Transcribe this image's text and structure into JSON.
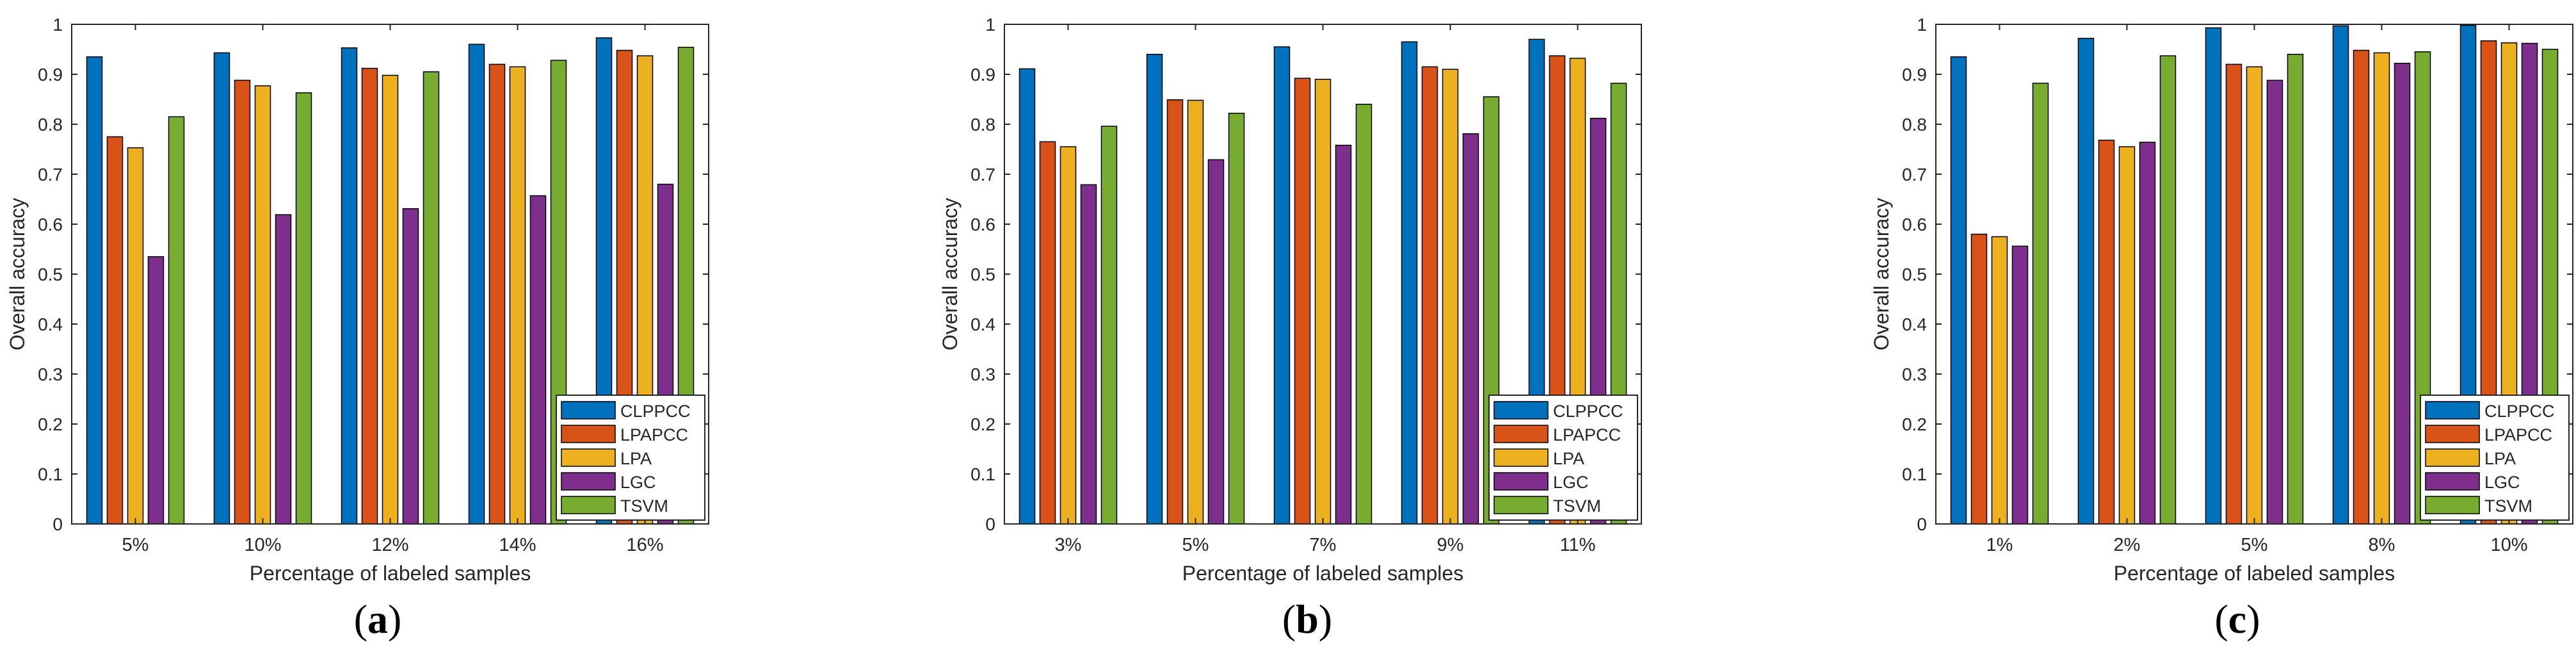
{
  "figure": {
    "panel_labels": [
      "a",
      "b",
      "c"
    ]
  },
  "chart_data": [
    {
      "type": "bar",
      "title": "",
      "xlabel": "Percentage of labeled samples",
      "ylabel": "Overall accuracy",
      "ylim": [
        0,
        1
      ],
      "yticks": [
        "0",
        "0.1",
        "0.2",
        "0.3",
        "0.4",
        "0.5",
        "0.6",
        "0.7",
        "0.8",
        "0.9",
        "1"
      ],
      "categories": [
        "5%",
        "10%",
        "12%",
        "14%",
        "16%"
      ],
      "legend_position": "bottom-right",
      "series": [
        {
          "name": "CLPPCC",
          "color": "#0072BD",
          "values": [
            0.935,
            0.943,
            0.953,
            0.96,
            0.973
          ]
        },
        {
          "name": "LPAPCC",
          "color": "#D95319",
          "values": [
            0.775,
            0.888,
            0.912,
            0.92,
            0.948
          ]
        },
        {
          "name": "LPA",
          "color": "#EDB120",
          "values": [
            0.753,
            0.877,
            0.898,
            0.915,
            0.937
          ]
        },
        {
          "name": "LGC",
          "color": "#7E2F8E",
          "values": [
            0.535,
            0.619,
            0.631,
            0.657,
            0.68
          ]
        },
        {
          "name": "TSVM",
          "color": "#77AC30",
          "values": [
            0.815,
            0.863,
            0.905,
            0.928,
            0.954
          ]
        }
      ]
    },
    {
      "type": "bar",
      "title": "",
      "xlabel": "Percentage of labeled samples",
      "ylabel": "Overall accuracy",
      "ylim": [
        0,
        1
      ],
      "yticks": [
        "0",
        "0.1",
        "0.2",
        "0.3",
        "0.4",
        "0.5",
        "0.6",
        "0.7",
        "0.8",
        "0.9",
        "1"
      ],
      "categories": [
        "3%",
        "5%",
        "7%",
        "9%",
        "11%"
      ],
      "legend_position": "bottom-right",
      "series": [
        {
          "name": "CLPPCC",
          "color": "#0072BD",
          "values": [
            0.911,
            0.94,
            0.955,
            0.965,
            0.97
          ]
        },
        {
          "name": "LPAPCC",
          "color": "#D95319",
          "values": [
            0.765,
            0.849,
            0.892,
            0.915,
            0.937
          ]
        },
        {
          "name": "LPA",
          "color": "#EDB120",
          "values": [
            0.755,
            0.848,
            0.89,
            0.91,
            0.932
          ]
        },
        {
          "name": "LGC",
          "color": "#7E2F8E",
          "values": [
            0.679,
            0.729,
            0.758,
            0.781,
            0.812
          ]
        },
        {
          "name": "TSVM",
          "color": "#77AC30",
          "values": [
            0.796,
            0.822,
            0.84,
            0.855,
            0.882
          ]
        }
      ]
    },
    {
      "type": "bar",
      "title": "",
      "xlabel": "Percentage of labeled samples",
      "ylabel": "Overall accuracy",
      "ylim": [
        0,
        1
      ],
      "yticks": [
        "0",
        "0.1",
        "0.2",
        "0.3",
        "0.4",
        "0.5",
        "0.6",
        "0.7",
        "0.8",
        "0.9",
        "1"
      ],
      "categories": [
        "1%",
        "2%",
        "5%",
        "8%",
        "10%"
      ],
      "legend_position": "bottom-right",
      "series": [
        {
          "name": "CLPPCC",
          "color": "#0072BD",
          "values": [
            0.935,
            0.972,
            0.993,
            0.997,
            0.998
          ]
        },
        {
          "name": "LPAPCC",
          "color": "#D95319",
          "values": [
            0.58,
            0.768,
            0.92,
            0.948,
            0.967
          ]
        },
        {
          "name": "LPA",
          "color": "#EDB120",
          "values": [
            0.575,
            0.755,
            0.915,
            0.943,
            0.963
          ]
        },
        {
          "name": "LGC",
          "color": "#7E2F8E",
          "values": [
            0.556,
            0.764,
            0.888,
            0.922,
            0.962
          ]
        },
        {
          "name": "TSVM",
          "color": "#77AC30",
          "values": [
            0.882,
            0.937,
            0.94,
            0.945,
            0.95
          ]
        }
      ]
    }
  ]
}
